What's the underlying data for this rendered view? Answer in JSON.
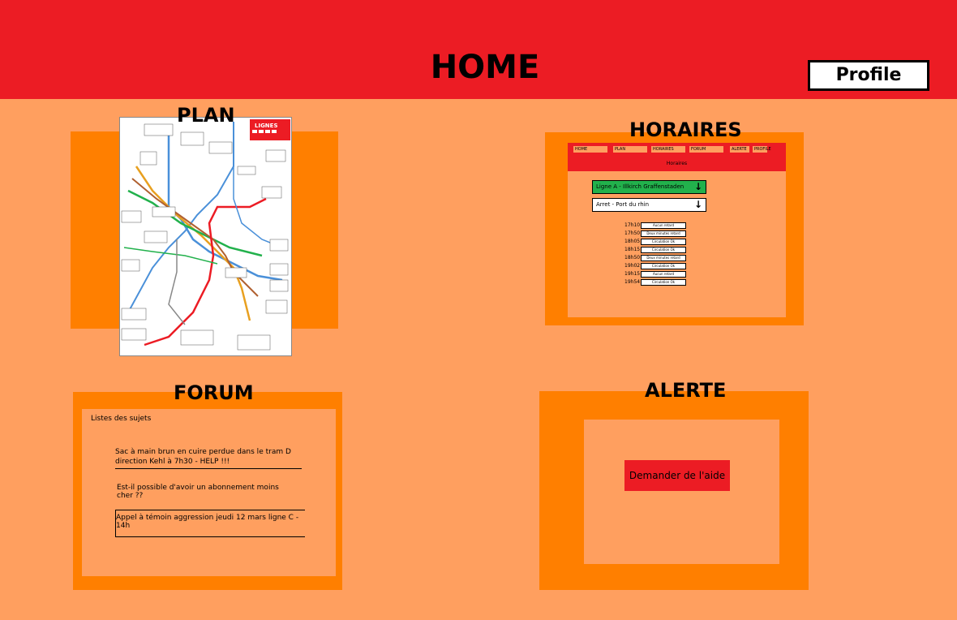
{
  "header": {
    "title": "HOME",
    "profile_label": "Profile"
  },
  "plan": {
    "title": "PLAN",
    "map_heading": "LIGNES"
  },
  "horaires": {
    "title": "HORAIRES",
    "tabs": [
      "HOME",
      "PLAN",
      "HORAIRES",
      "FORUM",
      "ALERTE",
      "PROFILE"
    ],
    "subtitle": "Horaires",
    "line_select": "Ligne A - Illkirch Graffenstaden",
    "stop_select": "Arret - Port du rhin",
    "times": [
      {
        "time": "17h10",
        "status": "Aucun retard"
      },
      {
        "time": "17h50",
        "status": "Deux minutes retard"
      },
      {
        "time": "18h05",
        "status": "Circulation Ok"
      },
      {
        "time": "18h15",
        "status": "Circulation Ok"
      },
      {
        "time": "18h50",
        "status": "Deux minutes retard"
      },
      {
        "time": "19h02",
        "status": "Circulation Ok"
      },
      {
        "time": "19h15",
        "status": "Aucun retard"
      },
      {
        "time": "19h54",
        "status": "Circulation Ok"
      }
    ]
  },
  "forum": {
    "title": "FORUM",
    "list_label": "Listes des sujets",
    "topics": [
      "Sac à main brun en cuire perdue dans le tram D direction Kehl à 7h30 - HELP !!!",
      "Est-il possible d'avoir un abonnement moins cher ??",
      "Appel à témoin aggression jeudi 12 mars ligne C - 14h"
    ]
  },
  "alerte": {
    "title": "ALERTE",
    "help_label": "Demander de l'aide"
  },
  "colors": {
    "header_red": "#ec1c24",
    "panel_orange": "#ff7f00",
    "background": "#ff9f5f",
    "select_green": "#22b14c"
  }
}
